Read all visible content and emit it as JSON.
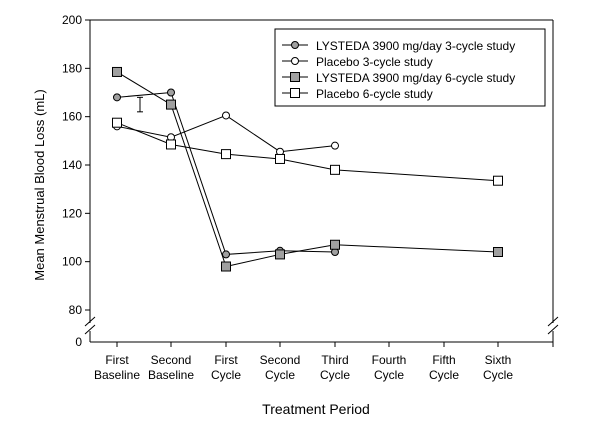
{
  "chart_data": {
    "type": "line",
    "title": "",
    "xlabel": "Treatment Period",
    "ylabel": "Mean Menstrual Blood Loss (mL)",
    "ylim": [
      80,
      200
    ],
    "y_break": {
      "below": 80,
      "baseline": 0
    },
    "yticks": [
      "0",
      "80",
      "100",
      "120",
      "140",
      "160",
      "180",
      "200"
    ],
    "ytick_values": [
      80,
      100,
      120,
      140,
      160,
      180,
      200
    ],
    "categories": [
      [
        "First",
        "Baseline"
      ],
      [
        "Second",
        "Baseline"
      ],
      [
        "First",
        "Cycle"
      ],
      [
        "Second",
        "Cycle"
      ],
      [
        "Third",
        "Cycle"
      ],
      [
        "Fourth",
        "Cycle"
      ],
      [
        "Fifth",
        "Cycle"
      ],
      [
        "Sixth",
        "Cycle"
      ]
    ],
    "legend_position": "top-right",
    "grid": false,
    "series": [
      {
        "name": "LYSTEDA 3900 mg/day 3-cycle study",
        "marker": "circle",
        "fill": "#a0a0a0",
        "values": [
          168,
          170,
          103,
          104.5,
          104,
          null,
          null,
          null
        ]
      },
      {
        "name": "Placebo 3-cycle study",
        "marker": "circle",
        "fill": "#ffffff",
        "values": [
          156,
          151.5,
          160.5,
          145.5,
          148,
          null,
          null,
          null
        ]
      },
      {
        "name": "LYSTEDA 3900 mg/day 6-cycle study",
        "marker": "square",
        "fill": "#a0a0a0",
        "values": [
          178.5,
          165,
          98,
          103,
          107,
          null,
          null,
          104
        ]
      },
      {
        "name": "Placebo 6-cycle study",
        "marker": "square",
        "fill": "#ffffff",
        "values": [
          157.5,
          148.5,
          144.5,
          142.5,
          138,
          null,
          null,
          133.5
        ]
      }
    ],
    "error_bar": {
      "category_between": [
        0,
        1
      ],
      "low": 162,
      "high": 168
    }
  }
}
